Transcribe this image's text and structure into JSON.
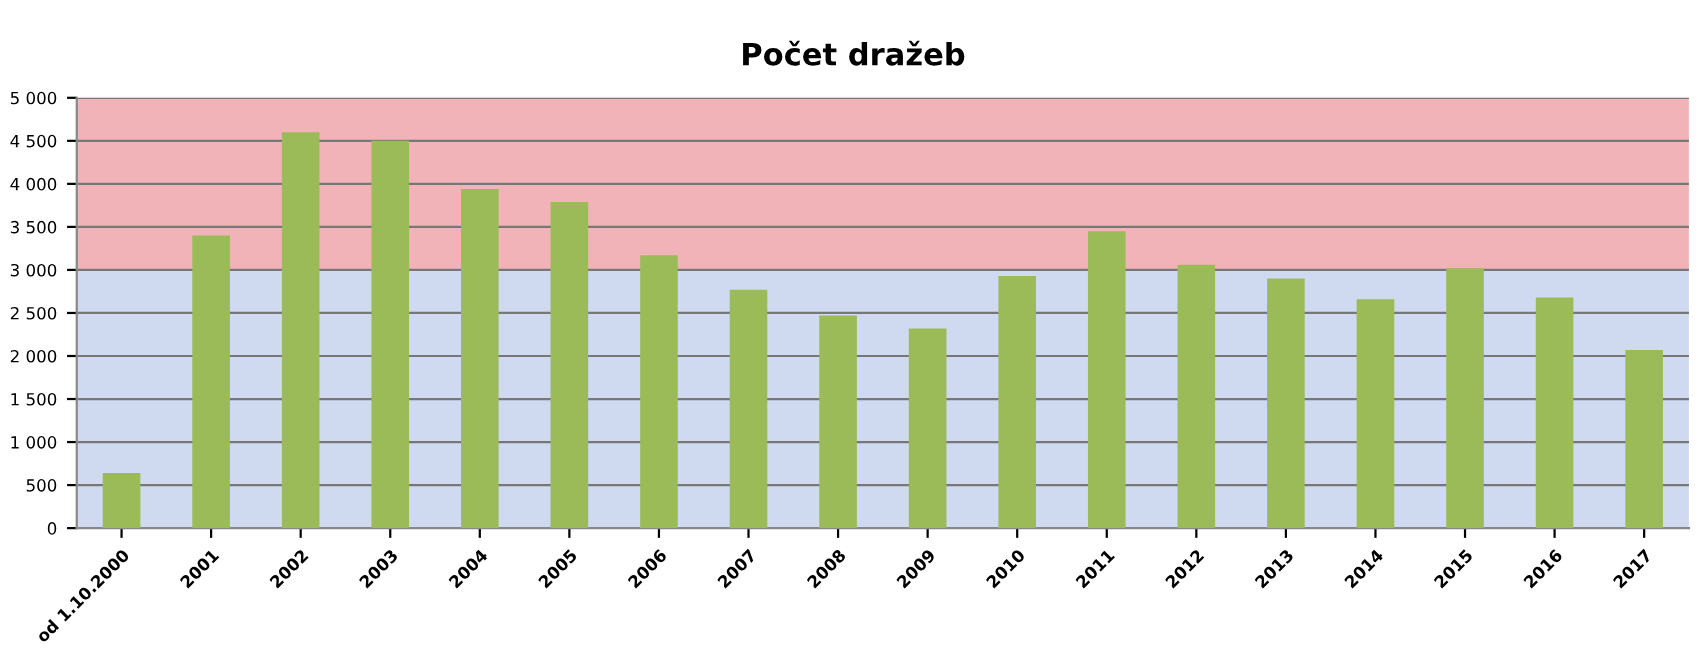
{
  "chart_data": {
    "type": "bar",
    "title": "Počet dražeb",
    "categories": [
      "od 1.10.2000",
      "2001",
      "2002",
      "2003",
      "2004",
      "2005",
      "2006",
      "2007",
      "2008",
      "2009",
      "2010",
      "2011",
      "2012",
      "2013",
      "2014",
      "2015",
      "2016",
      "2017"
    ],
    "values": [
      640,
      3400,
      4600,
      4500,
      3940,
      3790,
      3170,
      2770,
      2470,
      2320,
      2930,
      3450,
      3060,
      2900,
      2660,
      3020,
      2680,
      2070
    ],
    "color": "#9bbb59",
    "ylim": [
      0,
      5000
    ],
    "yticks": [
      0,
      500,
      {
        "value": 1000,
        "label": "1 000"
      },
      {
        "value": 1500,
        "label": "1 500"
      },
      {
        "value": 2000,
        "label": "2 000"
      },
      {
        "value": 2500,
        "label": "2 500"
      },
      {
        "value": 3000,
        "label": "3 000"
      },
      {
        "value": 3500,
        "label": "3 500"
      },
      {
        "value": 4000,
        "label": "4 000"
      },
      {
        "value": 4500,
        "label": "4 500"
      },
      {
        "value": 5000,
        "label": "5 000"
      }
    ],
    "bands": [
      {
        "axis": "y",
        "from": 0,
        "to": 3000,
        "color": "#cfdaf0"
      },
      {
        "axis": "y",
        "from": 3000,
        "to": 5000,
        "color": "#f2b3b8"
      }
    ],
    "grid": "y",
    "legend": false
  }
}
